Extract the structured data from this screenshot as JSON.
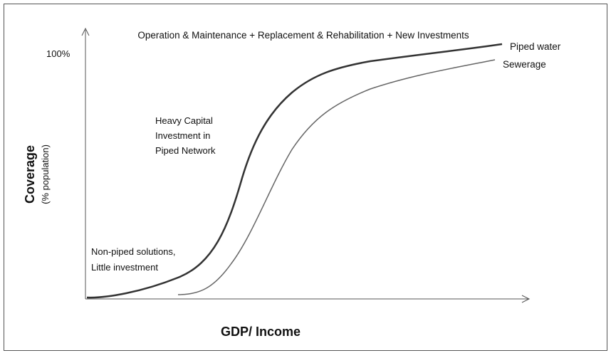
{
  "title": "Operation & Maintenance + Replacement & Rehabilitation + New Investments",
  "y_axis": {
    "label": "Coverage",
    "sublabel": "(% population)",
    "top_label": "100%"
  },
  "x_axis": {
    "label": "GDP/ Income"
  },
  "curves": [
    {
      "label": "Piped water"
    },
    {
      "label": "Sewerage"
    }
  ],
  "annotations": [
    {
      "lines": [
        "Heavy Capital",
        "Investment in",
        "Piped Network"
      ]
    },
    {
      "lines": [
        "Non-piped solutions,",
        "Little investment"
      ]
    }
  ]
}
